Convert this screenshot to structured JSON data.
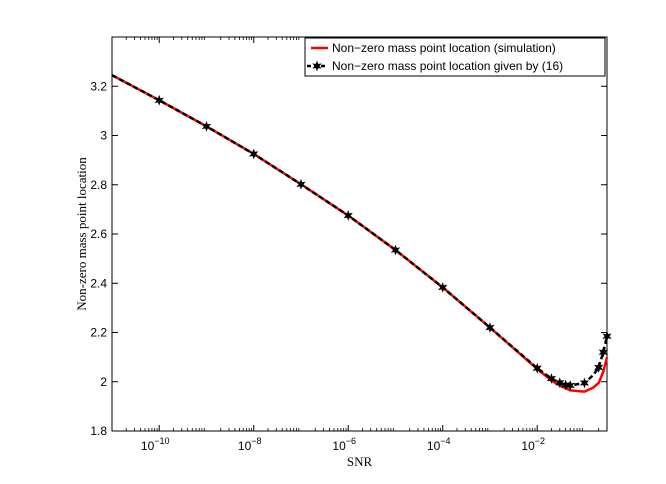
{
  "chart_data": {
    "type": "line",
    "title": "",
    "xlabel": "SNR",
    "ylabel": "Non-zero mass point location",
    "xscale": "log",
    "xlim": [
      1e-11,
      0.3
    ],
    "ylim": [
      1.8,
      3.4
    ],
    "grid": false,
    "legend_position": "top-right",
    "x_ticks": [
      {
        "value": 1e-10,
        "base": "10",
        "exp": "−10"
      },
      {
        "value": 1e-08,
        "base": "10",
        "exp": "−8"
      },
      {
        "value": 1e-06,
        "base": "10",
        "exp": "−6"
      },
      {
        "value": 0.0001,
        "base": "10",
        "exp": "−4"
      },
      {
        "value": 0.01,
        "base": "10",
        "exp": "−2"
      }
    ],
    "y_ticks": [
      {
        "value": 1.8,
        "label": "1.8"
      },
      {
        "value": 2.0,
        "label": "2"
      },
      {
        "value": 2.2,
        "label": "2.2"
      },
      {
        "value": 2.4,
        "label": "2.4"
      },
      {
        "value": 2.6,
        "label": "2.6"
      },
      {
        "value": 2.8,
        "label": "2.8"
      },
      {
        "value": 3.0,
        "label": "3"
      },
      {
        "value": 3.2,
        "label": "3.2"
      }
    ],
    "series": [
      {
        "name": "Non−zero mass point location (simulation)",
        "color": "#ff0000",
        "style": "solid",
        "marker": "none",
        "x": [
          1e-11,
          1e-10,
          1e-09,
          1e-08,
          1e-07,
          1e-06,
          1e-05,
          0.0001,
          0.001,
          0.01,
          0.02,
          0.03,
          0.05,
          0.1,
          0.15,
          0.2,
          0.25,
          0.3
        ],
        "y": [
          3.245,
          3.143,
          3.037,
          2.925,
          2.802,
          2.675,
          2.535,
          2.383,
          2.22,
          2.052,
          2.005,
          1.985,
          1.965,
          1.96,
          1.975,
          1.995,
          2.04,
          2.1
        ]
      },
      {
        "name": "Non−zero mass point location given by (16)",
        "color": "#000000",
        "style": "dashed",
        "marker": "star",
        "x": [
          1e-11,
          1e-10,
          1e-09,
          1e-08,
          1e-07,
          1e-06,
          1e-05,
          0.0001,
          0.001,
          0.01,
          0.02,
          0.03,
          0.04,
          0.05,
          0.1,
          0.15,
          0.2,
          0.25,
          0.3
        ],
        "y": [
          3.245,
          3.143,
          3.037,
          2.925,
          2.802,
          2.675,
          2.535,
          2.383,
          2.22,
          2.055,
          2.013,
          1.996,
          1.987,
          1.985,
          1.995,
          2.025,
          2.058,
          2.12,
          2.185
        ],
        "marker_x": [
          1e-10,
          1e-09,
          1e-08,
          1e-07,
          1e-06,
          1e-05,
          0.0001,
          0.001,
          0.01,
          0.02,
          0.03,
          0.04,
          0.05,
          0.1,
          0.2,
          0.25,
          0.3
        ],
        "marker_y": [
          3.143,
          3.037,
          2.925,
          2.802,
          2.675,
          2.535,
          2.383,
          2.22,
          2.055,
          2.013,
          1.996,
          1.987,
          1.985,
          1.995,
          2.058,
          2.12,
          2.185
        ]
      }
    ]
  }
}
